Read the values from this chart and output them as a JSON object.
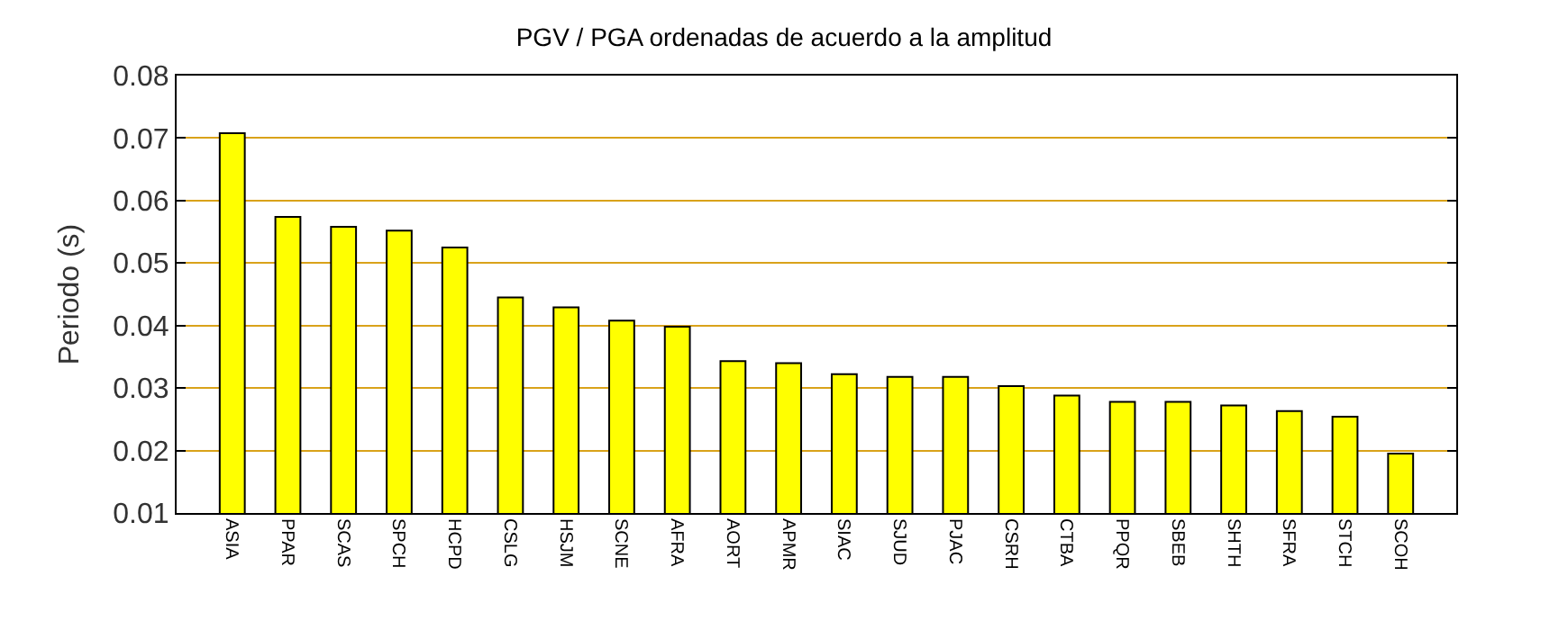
{
  "chart_data": {
    "type": "bar",
    "title": "PGV / PGA ordenadas de acuerdo a la amplitud",
    "ylabel": "Periodo (s)",
    "categories": [
      "ASIA",
      "PPAR",
      "SCAS",
      "SPCH",
      "HCPD",
      "CSLG",
      "HSJM",
      "SCNE",
      "AFRA",
      "AORT",
      "APMR",
      "SIAC",
      "SJUD",
      "PJAC",
      "CSRH",
      "CTBA",
      "PPQR",
      "SBEB",
      "SHTH",
      "SFRA",
      "STCH",
      "SCOH"
    ],
    "values": [
      0.0708,
      0.0574,
      0.0558,
      0.0552,
      0.0525,
      0.0445,
      0.0429,
      0.0408,
      0.0398,
      0.0343,
      0.034,
      0.0322,
      0.0318,
      0.0318,
      0.0303,
      0.0288,
      0.0278,
      0.0278,
      0.0272,
      0.0263,
      0.0254,
      0.0195
    ],
    "color": "#ffff00",
    "ylim": [
      0.01,
      0.08
    ],
    "yticks": [
      0.01,
      0.02,
      0.03,
      0.04,
      0.05,
      0.06,
      0.07,
      0.08
    ],
    "grid": "y",
    "legend": false
  }
}
